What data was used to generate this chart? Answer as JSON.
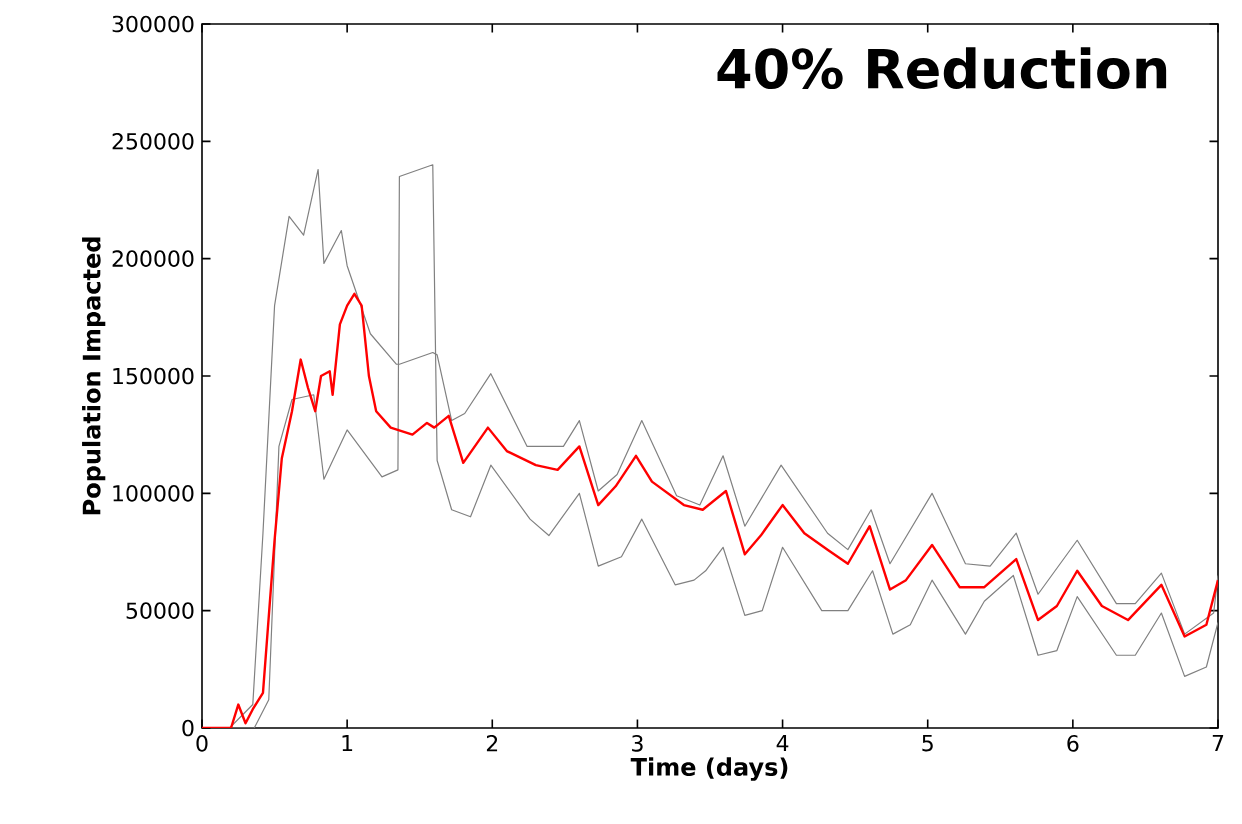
{
  "chart_data": {
    "type": "line",
    "title": "40% Reduction",
    "xlabel": "Time (days)",
    "ylabel": "Population Impacted",
    "xlim": [
      0,
      7
    ],
    "ylim": [
      0,
      300000
    ],
    "xticks": [
      0,
      1,
      2,
      3,
      4,
      5,
      6,
      7
    ],
    "yticks": [
      0,
      50000,
      100000,
      150000,
      200000,
      250000,
      300000
    ],
    "grid": false,
    "marker": "none",
    "line_style": "solid",
    "series": [
      {
        "color": "#808080",
        "x": [
          0,
          0.19,
          0.35,
          0.42,
          0.5,
          0.6,
          0.7,
          0.8,
          0.84,
          0.96,
          1.0,
          1.16,
          1.34,
          1.36,
          1.59,
          1.62,
          1.72,
          1.81,
          1.99,
          2.24,
          2.49,
          2.6,
          2.73,
          2.86,
          3.03,
          3.27,
          3.43,
          3.59,
          3.74,
          3.99,
          4.31,
          4.45,
          4.61,
          4.74,
          5.03,
          5.26,
          5.43,
          5.61,
          5.76,
          6.03,
          6.3,
          6.43,
          6.61,
          6.77,
          6.97,
          7.0
        ],
        "values": [
          0,
          0,
          10000,
          83000,
          180000,
          218000,
          210000,
          238000,
          198000,
          212000,
          197000,
          168000,
          155000,
          155000,
          160000,
          159000,
          131000,
          134000,
          151000,
          120000,
          120000,
          131000,
          101000,
          108000,
          131000,
          99000,
          95000,
          116000,
          86000,
          112000,
          83000,
          76000,
          93000,
          70000,
          100000,
          70000,
          69000,
          83000,
          57000,
          80000,
          53000,
          53000,
          66000,
          40000,
          49000,
          65000
        ]
      },
      {
        "color": "#808080",
        "x": [
          0,
          0.36,
          0.46,
          0.53,
          0.62,
          0.77,
          0.84,
          1.0,
          1.24,
          1.35,
          1.36,
          1.59,
          1.62,
          1.72,
          1.85,
          1.99,
          2.26,
          2.39,
          2.6,
          2.73,
          2.89,
          3.03,
          3.26,
          3.39,
          3.47,
          3.59,
          3.74,
          3.86,
          4.0,
          4.27,
          4.45,
          4.62,
          4.76,
          4.88,
          5.03,
          5.26,
          5.39,
          5.59,
          5.76,
          5.89,
          6.03,
          6.3,
          6.43,
          6.61,
          6.77,
          6.92,
          7.0
        ],
        "values": [
          0,
          0,
          12000,
          120000,
          140000,
          142000,
          106000,
          127000,
          107000,
          110000,
          235000,
          240000,
          114000,
          93000,
          90000,
          112000,
          89000,
          82000,
          100000,
          69000,
          73000,
          89000,
          61000,
          63000,
          67000,
          77000,
          48000,
          50000,
          77000,
          50000,
          50000,
          67000,
          40000,
          44000,
          63000,
          40000,
          54000,
          65000,
          31000,
          33000,
          56000,
          31000,
          31000,
          49000,
          22000,
          26000,
          45000
        ]
      },
      {
        "color": "#ff0000",
        "x": [
          0,
          0.2,
          0.25,
          0.3,
          0.35,
          0.42,
          0.5,
          0.55,
          0.62,
          0.68,
          0.73,
          0.78,
          0.82,
          0.88,
          0.9,
          0.95,
          1.0,
          1.05,
          1.1,
          1.15,
          1.2,
          1.3,
          1.45,
          1.55,
          1.6,
          1.7,
          1.8,
          1.97,
          2.1,
          2.3,
          2.45,
          2.6,
          2.73,
          2.85,
          2.99,
          3.1,
          3.32,
          3.45,
          3.61,
          3.74,
          3.85,
          4.0,
          4.15,
          4.31,
          4.45,
          4.6,
          4.74,
          4.85,
          5.03,
          5.22,
          5.39,
          5.61,
          5.76,
          5.89,
          6.03,
          6.2,
          6.38,
          6.61,
          6.77,
          6.92,
          7.0
        ],
        "values": [
          0,
          0,
          10000,
          2000,
          8000,
          15000,
          80000,
          115000,
          135000,
          157000,
          145000,
          135000,
          150000,
          152000,
          142000,
          172000,
          180000,
          185000,
          180000,
          150000,
          135000,
          128000,
          125000,
          130000,
          128000,
          133000,
          113000,
          128000,
          118000,
          112000,
          110000,
          120000,
          95000,
          103000,
          116000,
          105000,
          95000,
          93000,
          101000,
          74000,
          82000,
          95000,
          83000,
          76000,
          70000,
          86000,
          59000,
          63000,
          78000,
          60000,
          60000,
          72000,
          46000,
          52000,
          67000,
          52000,
          46000,
          61000,
          39000,
          44000,
          63000
        ]
      }
    ]
  }
}
